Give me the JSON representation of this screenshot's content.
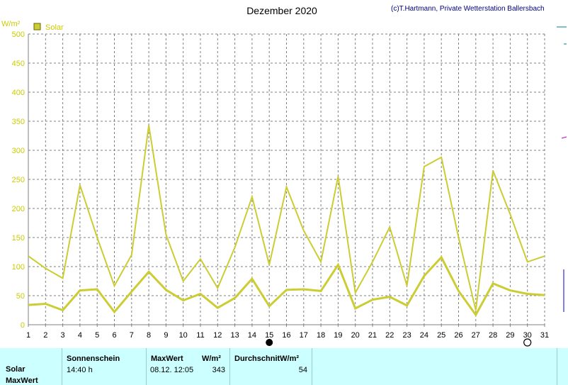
{
  "title": "Dezember 2020",
  "copyright": "(c)T.Hartmann, Private Wetterstation Ballersbach",
  "colors": {
    "series": "#cccc33",
    "grid": "#808080",
    "axis_text": "#cccc00",
    "panel_bg": "#ccffff"
  },
  "chart_data": {
    "type": "line",
    "title": "Dezember 2020",
    "ylabel": "W/m²",
    "ylim": [
      0,
      500
    ],
    "yticks": [
      0,
      50,
      100,
      150,
      200,
      250,
      300,
      350,
      400,
      450,
      500
    ],
    "x": [
      1,
      2,
      3,
      4,
      5,
      6,
      7,
      8,
      9,
      10,
      11,
      12,
      13,
      14,
      15,
      16,
      17,
      18,
      19,
      20,
      21,
      22,
      23,
      24,
      25,
      26,
      27,
      28,
      29,
      30,
      31
    ],
    "xlim": [
      1,
      31
    ],
    "grid": true,
    "legend": "top-left",
    "series": [
      {
        "name": "Solar",
        "kind": "max",
        "values": [
          118,
          97,
          80,
          240,
          150,
          67,
          120,
          343,
          155,
          75,
          113,
          63,
          133,
          220,
          103,
          237,
          162,
          108,
          255,
          55,
          108,
          168,
          67,
          272,
          288,
          150,
          25,
          265,
          190,
          108,
          118
        ]
      },
      {
        "kind": "avg",
        "values": [
          34,
          36,
          25,
          59,
          61,
          22,
          57,
          91,
          60,
          42,
          53,
          29,
          46,
          79,
          32,
          60,
          61,
          58,
          103,
          28,
          43,
          48,
          33,
          84,
          116,
          58,
          17,
          71,
          59,
          53,
          51
        ]
      }
    ],
    "moon_new_day": 15,
    "moon_full_day": 30
  },
  "panel": {
    "row_labels": [
      "Solar",
      "MaxWert"
    ],
    "sonnenschein_header": "Sonnenschein",
    "sonnenschein_value": "14:40 h",
    "maxwert_header": "MaxWert",
    "maxwert_unit": "W/m²",
    "maxwert_time": "08.12.  12:05",
    "maxwert_value": "343",
    "durchschnitt_header": "DurchschnitW/m²",
    "durchschnitt_value": "54"
  }
}
